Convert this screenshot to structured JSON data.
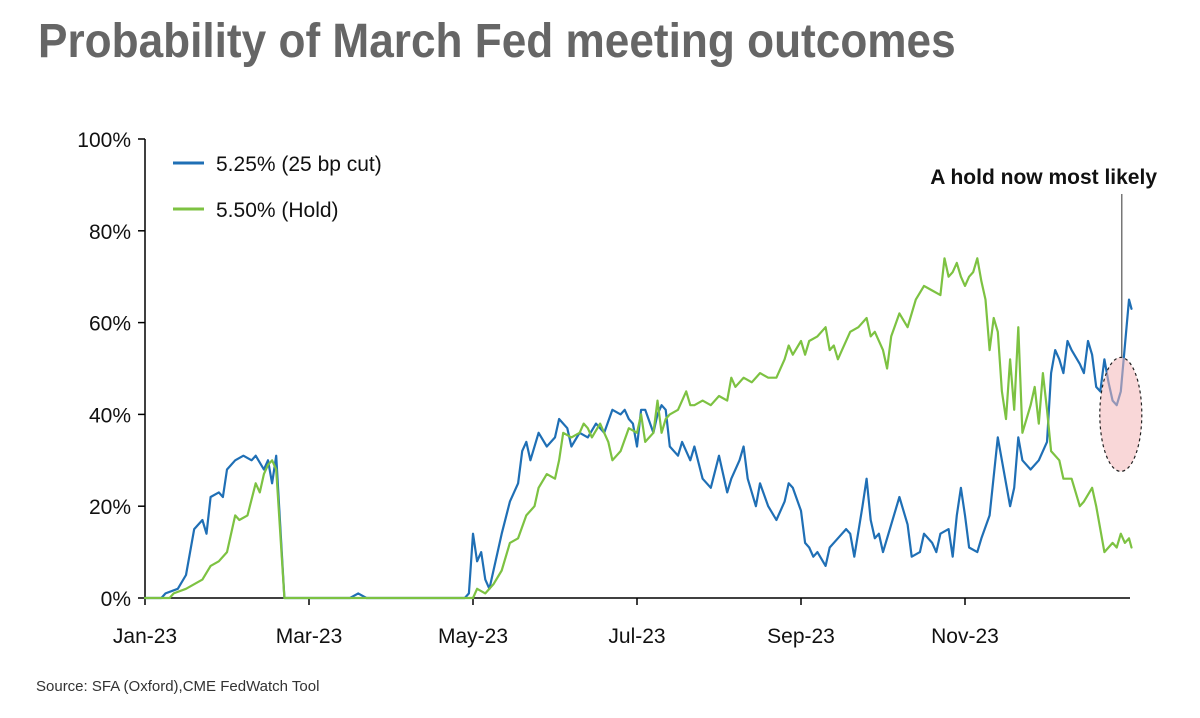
{
  "title": "Probability of March Fed meeting outcomes",
  "source": "Source: SFA (Oxford),CME FedWatch Tool",
  "colors": {
    "cut": "#1f6fb5",
    "hold": "#7dc242",
    "highlight": "#f4b6b8"
  },
  "chart_data": {
    "type": "line",
    "title": "Probability of March Fed meeting outcomes",
    "xlabel": "",
    "ylabel": "",
    "ylim": [
      0,
      100
    ],
    "y_ticks": [
      "0%",
      "20%",
      "40%",
      "60%",
      "80%",
      "100%"
    ],
    "y_tick_values": [
      0,
      20,
      40,
      60,
      80,
      100
    ],
    "x_ticks": [
      "Jan-23",
      "Mar-23",
      "May-23",
      "Jul-23",
      "Sep-23",
      "Nov-23"
    ],
    "x_tick_values": [
      0,
      2,
      4,
      6,
      8,
      10
    ],
    "x_unit": "months since Jan-23",
    "xlim": [
      0,
      12.03
    ],
    "grid": false,
    "legend_position": "top-left",
    "annotation": "A hold now most likely",
    "series": [
      {
        "name": "5.25% (25 bp cut)",
        "color": "#1f6fb5",
        "points": [
          [
            0,
            0
          ],
          [
            0.2,
            0
          ],
          [
            0.25,
            1
          ],
          [
            0.4,
            2
          ],
          [
            0.5,
            5
          ],
          [
            0.6,
            15
          ],
          [
            0.7,
            17
          ],
          [
            0.75,
            14
          ],
          [
            0.8,
            22
          ],
          [
            0.9,
            23
          ],
          [
            0.95,
            22
          ],
          [
            1.0,
            28
          ],
          [
            1.1,
            30
          ],
          [
            1.2,
            31
          ],
          [
            1.3,
            30
          ],
          [
            1.35,
            31
          ],
          [
            1.45,
            28
          ],
          [
            1.5,
            30
          ],
          [
            1.55,
            25
          ],
          [
            1.6,
            31
          ],
          [
            1.7,
            0
          ],
          [
            1.8,
            0
          ],
          [
            2.5,
            0
          ],
          [
            2.6,
            1
          ],
          [
            2.7,
            0
          ],
          [
            3.9,
            0
          ],
          [
            3.95,
            1
          ],
          [
            4.0,
            14
          ],
          [
            4.05,
            8
          ],
          [
            4.1,
            10
          ],
          [
            4.15,
            4
          ],
          [
            4.2,
            2
          ],
          [
            4.3,
            10
          ],
          [
            4.35,
            14
          ],
          [
            4.45,
            21
          ],
          [
            4.55,
            25
          ],
          [
            4.6,
            32
          ],
          [
            4.65,
            34
          ],
          [
            4.7,
            30
          ],
          [
            4.8,
            36
          ],
          [
            4.9,
            33
          ],
          [
            5.0,
            35
          ],
          [
            5.05,
            39
          ],
          [
            5.15,
            37
          ],
          [
            5.2,
            33
          ],
          [
            5.3,
            36
          ],
          [
            5.4,
            35
          ],
          [
            5.5,
            38
          ],
          [
            5.6,
            36
          ],
          [
            5.7,
            41
          ],
          [
            5.8,
            40
          ],
          [
            5.85,
            41
          ],
          [
            5.9,
            39
          ],
          [
            5.95,
            38
          ],
          [
            6.0,
            33
          ],
          [
            6.05,
            41
          ],
          [
            6.1,
            41
          ],
          [
            6.2,
            36
          ],
          [
            6.25,
            40
          ],
          [
            6.3,
            42
          ],
          [
            6.35,
            41
          ],
          [
            6.4,
            33
          ],
          [
            6.5,
            31
          ],
          [
            6.55,
            34
          ],
          [
            6.65,
            30
          ],
          [
            6.7,
            33
          ],
          [
            6.8,
            26
          ],
          [
            6.9,
            24
          ],
          [
            7.0,
            31
          ],
          [
            7.1,
            23
          ],
          [
            7.15,
            26
          ],
          [
            7.25,
            30
          ],
          [
            7.3,
            33
          ],
          [
            7.35,
            26
          ],
          [
            7.45,
            20
          ],
          [
            7.5,
            25
          ],
          [
            7.6,
            20
          ],
          [
            7.7,
            17
          ],
          [
            7.8,
            21
          ],
          [
            7.85,
            25
          ],
          [
            7.9,
            24
          ],
          [
            8.0,
            19
          ],
          [
            8.05,
            12
          ],
          [
            8.1,
            11
          ],
          [
            8.15,
            9
          ],
          [
            8.2,
            10
          ],
          [
            8.3,
            7
          ],
          [
            8.35,
            11
          ],
          [
            8.45,
            13
          ],
          [
            8.55,
            15
          ],
          [
            8.6,
            14
          ],
          [
            8.65,
            9
          ],
          [
            8.75,
            20
          ],
          [
            8.8,
            26
          ],
          [
            8.85,
            17
          ],
          [
            8.9,
            13
          ],
          [
            8.95,
            14
          ],
          [
            9.0,
            10
          ],
          [
            9.1,
            16
          ],
          [
            9.2,
            22
          ],
          [
            9.3,
            16
          ],
          [
            9.35,
            9
          ],
          [
            9.45,
            10
          ],
          [
            9.5,
            14
          ],
          [
            9.6,
            12
          ],
          [
            9.65,
            10
          ],
          [
            9.7,
            14
          ],
          [
            9.8,
            15
          ],
          [
            9.85,
            9
          ],
          [
            9.9,
            18
          ],
          [
            9.95,
            24
          ],
          [
            10.0,
            18
          ],
          [
            10.05,
            11
          ],
          [
            10.15,
            10
          ],
          [
            10.2,
            13
          ],
          [
            10.3,
            18
          ],
          [
            10.4,
            35
          ],
          [
            10.5,
            25
          ],
          [
            10.55,
            20
          ],
          [
            10.6,
            24
          ],
          [
            10.65,
            35
          ],
          [
            10.7,
            30
          ],
          [
            10.8,
            28
          ],
          [
            10.9,
            30
          ],
          [
            11.0,
            34
          ],
          [
            11.05,
            49
          ],
          [
            11.1,
            54
          ],
          [
            11.15,
            52
          ],
          [
            11.2,
            49
          ],
          [
            11.25,
            56
          ],
          [
            11.3,
            54
          ],
          [
            11.4,
            51
          ],
          [
            11.45,
            49
          ],
          [
            11.5,
            56
          ],
          [
            11.55,
            53
          ],
          [
            11.6,
            46
          ],
          [
            11.65,
            45
          ],
          [
            11.7,
            52
          ],
          [
            11.75,
            47
          ],
          [
            11.8,
            43
          ],
          [
            11.85,
            42
          ],
          [
            11.9,
            45
          ],
          [
            11.95,
            55
          ],
          [
            12.0,
            65
          ],
          [
            12.03,
            63
          ]
        ]
      },
      {
        "name": "5.50% (Hold)",
        "color": "#7dc242",
        "points": [
          [
            0,
            0
          ],
          [
            0.3,
            0
          ],
          [
            0.35,
            1
          ],
          [
            0.5,
            2
          ],
          [
            0.6,
            3
          ],
          [
            0.7,
            4
          ],
          [
            0.8,
            7
          ],
          [
            0.9,
            8
          ],
          [
            1.0,
            10
          ],
          [
            1.1,
            18
          ],
          [
            1.15,
            17
          ],
          [
            1.25,
            18
          ],
          [
            1.35,
            25
          ],
          [
            1.4,
            23
          ],
          [
            1.45,
            27
          ],
          [
            1.5,
            29
          ],
          [
            1.55,
            30
          ],
          [
            1.6,
            28
          ],
          [
            1.7,
            0
          ],
          [
            1.8,
            0
          ],
          [
            4.0,
            0
          ],
          [
            4.05,
            2
          ],
          [
            4.15,
            1
          ],
          [
            4.25,
            3
          ],
          [
            4.35,
            6
          ],
          [
            4.45,
            12
          ],
          [
            4.55,
            13
          ],
          [
            4.65,
            18
          ],
          [
            4.75,
            20
          ],
          [
            4.8,
            24
          ],
          [
            4.9,
            27
          ],
          [
            5.0,
            26
          ],
          [
            5.05,
            30
          ],
          [
            5.1,
            36
          ],
          [
            5.2,
            35
          ],
          [
            5.3,
            36
          ],
          [
            5.35,
            38
          ],
          [
            5.4,
            37
          ],
          [
            5.45,
            35
          ],
          [
            5.55,
            38
          ],
          [
            5.6,
            36
          ],
          [
            5.65,
            34
          ],
          [
            5.7,
            30
          ],
          [
            5.8,
            32
          ],
          [
            5.9,
            37
          ],
          [
            6.0,
            36
          ],
          [
            6.05,
            40
          ],
          [
            6.1,
            34
          ],
          [
            6.2,
            36
          ],
          [
            6.25,
            43
          ],
          [
            6.3,
            36
          ],
          [
            6.35,
            39
          ],
          [
            6.4,
            40
          ],
          [
            6.5,
            41
          ],
          [
            6.6,
            45
          ],
          [
            6.65,
            42
          ],
          [
            6.7,
            42
          ],
          [
            6.8,
            43
          ],
          [
            6.9,
            42
          ],
          [
            7.0,
            44
          ],
          [
            7.1,
            43
          ],
          [
            7.15,
            48
          ],
          [
            7.2,
            46
          ],
          [
            7.3,
            48
          ],
          [
            7.4,
            47
          ],
          [
            7.5,
            49
          ],
          [
            7.6,
            48
          ],
          [
            7.7,
            48
          ],
          [
            7.8,
            52
          ],
          [
            7.85,
            55
          ],
          [
            7.9,
            53
          ],
          [
            8.0,
            56
          ],
          [
            8.05,
            53
          ],
          [
            8.1,
            56
          ],
          [
            8.2,
            57
          ],
          [
            8.3,
            59
          ],
          [
            8.35,
            54
          ],
          [
            8.4,
            55
          ],
          [
            8.45,
            52
          ],
          [
            8.5,
            54
          ],
          [
            8.6,
            58
          ],
          [
            8.7,
            59
          ],
          [
            8.8,
            61
          ],
          [
            8.85,
            57
          ],
          [
            8.9,
            58
          ],
          [
            9.0,
            54
          ],
          [
            9.05,
            50
          ],
          [
            9.1,
            57
          ],
          [
            9.2,
            62
          ],
          [
            9.3,
            59
          ],
          [
            9.4,
            65
          ],
          [
            9.5,
            68
          ],
          [
            9.6,
            67
          ],
          [
            9.7,
            66
          ],
          [
            9.75,
            74
          ],
          [
            9.8,
            70
          ],
          [
            9.85,
            71
          ],
          [
            9.9,
            73
          ],
          [
            9.95,
            70
          ],
          [
            10.0,
            68
          ],
          [
            10.05,
            70
          ],
          [
            10.1,
            71
          ],
          [
            10.15,
            74
          ],
          [
            10.2,
            69
          ],
          [
            10.25,
            65
          ],
          [
            10.3,
            54
          ],
          [
            10.35,
            61
          ],
          [
            10.4,
            58
          ],
          [
            10.45,
            45
          ],
          [
            10.5,
            39
          ],
          [
            10.55,
            52
          ],
          [
            10.6,
            41
          ],
          [
            10.65,
            59
          ],
          [
            10.7,
            36
          ],
          [
            10.8,
            42
          ],
          [
            10.85,
            46
          ],
          [
            10.9,
            38
          ],
          [
            10.95,
            49
          ],
          [
            11.0,
            41
          ],
          [
            11.05,
            32
          ],
          [
            11.15,
            30
          ],
          [
            11.2,
            26
          ],
          [
            11.3,
            26
          ],
          [
            11.4,
            20
          ],
          [
            11.45,
            21
          ],
          [
            11.55,
            24
          ],
          [
            11.6,
            20
          ],
          [
            11.7,
            10
          ],
          [
            11.8,
            12
          ],
          [
            11.85,
            11
          ],
          [
            11.9,
            14
          ],
          [
            11.95,
            12
          ],
          [
            12.0,
            13
          ],
          [
            12.03,
            11
          ]
        ]
      }
    ]
  }
}
